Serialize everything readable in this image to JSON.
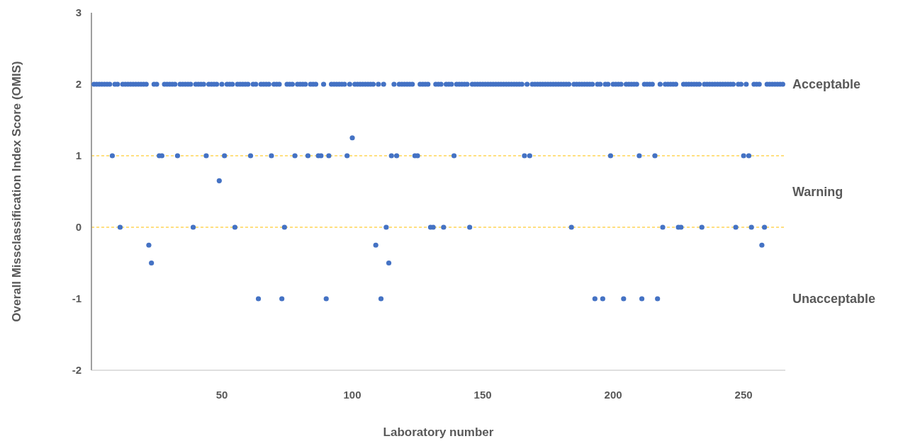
{
  "chart_data": {
    "type": "scatter",
    "xlabel": "Laboratory number",
    "ylabel": "Overall Missclassification Index Score (OMIS)",
    "xlim": [
      0,
      266
    ],
    "xticks": [
      50,
      100,
      150,
      200,
      250
    ],
    "ylim": [
      -2,
      3
    ],
    "yticks": [
      -2,
      -1,
      0,
      1,
      2,
      3
    ],
    "grid": false,
    "marker": "circle",
    "ref_lines": [
      {
        "axis": "y",
        "value": 1,
        "color": "#ffc000",
        "line_style": "dashed"
      },
      {
        "axis": "y",
        "value": 0,
        "color": "#ffc000",
        "line_style": "dashed"
      }
    ],
    "annotations": [
      "Acceptable",
      "Warning",
      "Unacceptable"
    ],
    "series": [
      {
        "color": "#4472c4",
        "x": [
          1,
          2,
          3,
          4,
          5,
          6,
          7,
          8,
          9,
          10,
          11,
          12,
          13,
          14,
          15,
          16,
          17,
          18,
          19,
          20,
          21,
          22,
          23,
          24,
          25,
          26,
          27,
          28,
          29,
          30,
          31,
          32,
          33,
          34,
          35,
          36,
          37,
          38,
          39,
          40,
          41,
          42,
          43,
          44,
          45,
          46,
          47,
          48,
          49,
          50,
          51,
          52,
          53,
          54,
          55,
          56,
          57,
          58,
          59,
          60,
          61,
          62,
          63,
          64,
          65,
          66,
          67,
          68,
          69,
          70,
          71,
          72,
          73,
          74,
          75,
          76,
          77,
          78,
          79,
          80,
          81,
          82,
          83,
          84,
          85,
          86,
          87,
          88,
          89,
          90,
          91,
          92,
          93,
          94,
          95,
          96,
          97,
          98,
          99,
          100,
          101,
          102,
          103,
          104,
          105,
          106,
          107,
          108,
          109,
          110,
          111,
          112,
          113,
          114,
          115,
          116,
          117,
          118,
          119,
          120,
          121,
          122,
          123,
          124,
          125,
          126,
          127,
          128,
          129,
          130,
          131,
          132,
          133,
          134,
          135,
          136,
          137,
          138,
          139,
          140,
          141,
          142,
          143,
          144,
          145,
          146,
          147,
          148,
          149,
          150,
          151,
          152,
          153,
          154,
          155,
          156,
          157,
          158,
          159,
          160,
          161,
          162,
          163,
          164,
          165,
          166,
          167,
          168,
          169,
          170,
          171,
          172,
          173,
          174,
          175,
          176,
          177,
          178,
          179,
          180,
          181,
          182,
          183,
          184,
          185,
          186,
          187,
          188,
          189,
          190,
          191,
          192,
          193,
          194,
          195,
          196,
          197,
          198,
          199,
          200,
          201,
          202,
          203,
          204,
          205,
          206,
          207,
          208,
          209,
          210,
          211,
          212,
          213,
          214,
          215,
          216,
          217,
          218,
          219,
          220,
          221,
          222,
          223,
          224,
          225,
          226,
          227,
          228,
          229,
          230,
          231,
          232,
          233,
          234,
          235,
          236,
          237,
          238,
          239,
          240,
          241,
          242,
          243,
          244,
          245,
          246,
          247,
          248,
          249,
          250,
          251,
          252,
          253,
          254,
          255,
          256,
          257,
          258,
          259,
          260,
          261,
          262,
          263,
          264,
          265
        ],
        "values": [
          2,
          2,
          2,
          2,
          2,
          2,
          2,
          1,
          2,
          2,
          0,
          2,
          2,
          2,
          2,
          2,
          2,
          2,
          2,
          2,
          2,
          -0.25,
          -0.5,
          2,
          2,
          1,
          1,
          2,
          2,
          2,
          2,
          2,
          1,
          2,
          2,
          2,
          2,
          2,
          0,
          2,
          2,
          2,
          2,
          1,
          2,
          2,
          2,
          2,
          0.65,
          2,
          1,
          2,
          2,
          2,
          0,
          2,
          2,
          2,
          2,
          2,
          1,
          2,
          2,
          -1,
          2,
          2,
          2,
          2,
          1,
          2,
          2,
          2,
          -1,
          0,
          2,
          2,
          2,
          1,
          2,
          2,
          2,
          2,
          1,
          2,
          2,
          2,
          1,
          1,
          2,
          -1,
          1,
          2,
          2,
          2,
          2,
          2,
          2,
          1,
          2,
          1.25,
          2,
          2,
          2,
          2,
          2,
          2,
          2,
          2,
          -0.25,
          2,
          -1,
          2,
          0,
          -0.5,
          1,
          2,
          1,
          2,
          2,
          2,
          2,
          2,
          2,
          1,
          1,
          2,
          2,
          2,
          2,
          0,
          0,
          2,
          2,
          2,
          0,
          2,
          2,
          2,
          1,
          2,
          2,
          2,
          2,
          2,
          0,
          2,
          2,
          2,
          2,
          2,
          2,
          2,
          2,
          2,
          2,
          2,
          2,
          2,
          2,
          2,
          2,
          2,
          2,
          2,
          2,
          1,
          2,
          1,
          2,
          2,
          2,
          2,
          2,
          2,
          2,
          2,
          2,
          2,
          2,
          2,
          2,
          2,
          2,
          0,
          2,
          2,
          2,
          2,
          2,
          2,
          2,
          2,
          -1,
          2,
          2,
          -1,
          2,
          2,
          1,
          2,
          2,
          2,
          2,
          -1,
          2,
          2,
          2,
          2,
          2,
          1,
          -1,
          2,
          2,
          2,
          2,
          1,
          -1,
          2,
          0,
          2,
          2,
          2,
          2,
          2,
          0,
          0,
          2,
          2,
          2,
          2,
          2,
          2,
          2,
          0,
          2,
          2,
          2,
          2,
          2,
          2,
          2,
          2,
          2,
          2,
          2,
          2,
          0,
          2,
          2,
          1,
          2,
          1,
          0,
          2,
          2,
          2,
          -0.25,
          0,
          2,
          2,
          2,
          2,
          2,
          2,
          2
        ]
      }
    ]
  }
}
